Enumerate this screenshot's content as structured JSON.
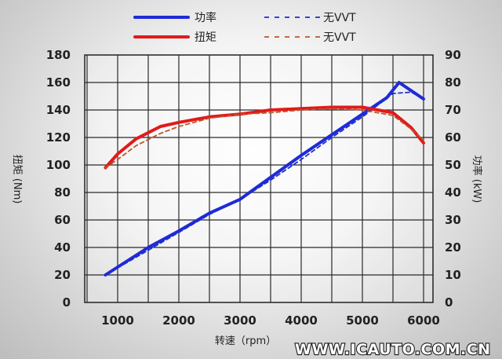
{
  "chart_data": {
    "type": "line",
    "xlabel": "转速（rpm）",
    "ylabel_left": "扭矩 (Nm)",
    "ylabel_right": "功率 (kW)",
    "xlim": [
      0,
      6000
    ],
    "x_ticks": [
      1000,
      2000,
      3000,
      4000,
      5000,
      6000
    ],
    "ylim_left": [
      0,
      180
    ],
    "y_ticks_left": [
      0,
      20,
      40,
      60,
      80,
      100,
      120,
      140,
      160,
      180
    ],
    "ylim_right": [
      0,
      90
    ],
    "y_ticks_right": [
      0,
      10,
      20,
      30,
      40,
      50,
      60,
      70,
      80,
      90
    ],
    "grid": true,
    "legend_position": "top-center",
    "series": [
      {
        "name": "功率",
        "axis": "right",
        "style": "solid",
        "color": "#1f2bd6",
        "x": [
          800,
          1500,
          2000,
          2500,
          3000,
          3500,
          4000,
          4500,
          5000,
          5400,
          5600,
          5800,
          6000
        ],
        "y": [
          10,
          20,
          26,
          32.5,
          37.5,
          45.5,
          53.5,
          61,
          68.5,
          74.5,
          80,
          77,
          74
        ]
      },
      {
        "name": "无VVT",
        "axis": "right",
        "style": "dashed",
        "color": "#1f2bd6",
        "x": [
          800,
          1500,
          2000,
          2500,
          3000,
          3500,
          4000,
          4500,
          5000,
          5500,
          5800,
          6000
        ],
        "y": [
          10,
          19,
          25.5,
          32,
          37.5,
          44.5,
          52,
          60,
          67.5,
          76,
          76.5,
          74
        ]
      },
      {
        "name": "扭矩",
        "axis": "left",
        "style": "solid",
        "color": "#e21a1a",
        "x": [
          800,
          1000,
          1300,
          1700,
          2000,
          2500,
          3000,
          3500,
          4000,
          4500,
          5000,
          5500,
          5800,
          6000
        ],
        "y": [
          98,
          108,
          119,
          128,
          131,
          135,
          137,
          140,
          141,
          142,
          142,
          138,
          127,
          116
        ]
      },
      {
        "name": "无VVT",
        "axis": "left",
        "style": "dashed",
        "color": "#b9562b",
        "x": [
          800,
          1000,
          1300,
          1700,
          2000,
          2500,
          3000,
          3500,
          4000,
          4500,
          5000,
          5500,
          5800,
          6000
        ],
        "y": [
          98,
          104,
          114,
          123,
          128,
          134,
          137,
          138,
          140,
          141,
          140,
          136,
          126,
          118
        ]
      }
    ]
  },
  "watermark": "WWW.ICAUTO.COM.CN"
}
